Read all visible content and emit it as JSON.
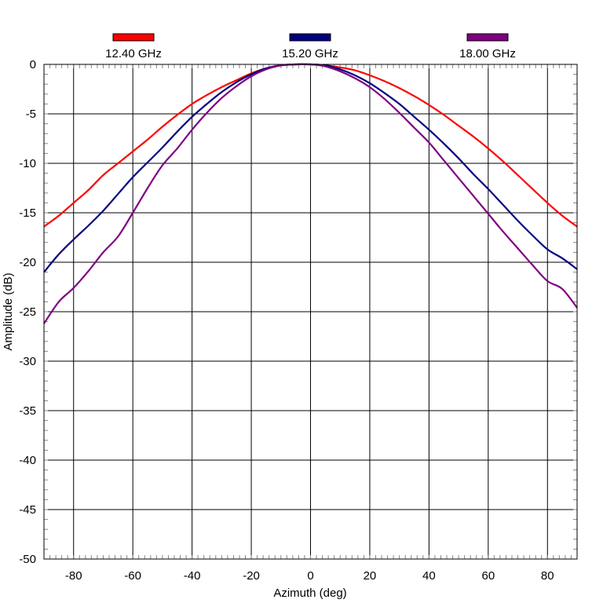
{
  "chart_data": {
    "type": "line",
    "title": "",
    "xlabel": "Azimuth (deg)",
    "ylabel": "Amplitude (dB)",
    "xlim": [
      -90,
      90
    ],
    "ylim": [
      -50,
      0
    ],
    "xticks": [
      -80,
      -60,
      -40,
      -20,
      0,
      20,
      40,
      60,
      80
    ],
    "yticks": [
      0,
      -5,
      -10,
      -15,
      -20,
      -25,
      -30,
      -35,
      -40,
      -45,
      -50
    ],
    "x_minor_step": 2,
    "y_minor_step": 1,
    "grid": true,
    "legend_position": "top",
    "series": [
      {
        "name": "12.40 GHz",
        "color": "#ff0000",
        "x": [
          -90,
          -85,
          -80,
          -75,
          -70,
          -65,
          -60,
          -55,
          -50,
          -45,
          -40,
          -35,
          -30,
          -25,
          -20,
          -15,
          -10,
          -5,
          0,
          5,
          10,
          15,
          20,
          25,
          30,
          35,
          40,
          45,
          50,
          55,
          60,
          65,
          70,
          75,
          80,
          85,
          90
        ],
        "y": [
          -16.4,
          -15.3,
          -14.0,
          -12.7,
          -11.2,
          -10.0,
          -8.8,
          -7.6,
          -6.3,
          -5.1,
          -4.0,
          -3.1,
          -2.3,
          -1.6,
          -0.9,
          -0.4,
          -0.1,
          0.0,
          0.0,
          -0.1,
          -0.3,
          -0.6,
          -1.1,
          -1.7,
          -2.4,
          -3.2,
          -4.1,
          -5.1,
          -6.2,
          -7.3,
          -8.5,
          -9.8,
          -11.2,
          -12.6,
          -14.0,
          -15.3,
          -16.4
        ]
      },
      {
        "name": "15.20 GHz",
        "color": "#000080",
        "x": [
          -90,
          -85,
          -80,
          -75,
          -70,
          -65,
          -60,
          -55,
          -50,
          -45,
          -40,
          -35,
          -30,
          -25,
          -20,
          -15,
          -10,
          -5,
          0,
          5,
          10,
          15,
          20,
          25,
          30,
          35,
          40,
          45,
          50,
          55,
          60,
          65,
          70,
          75,
          80,
          85,
          90
        ],
        "y": [
          -21.0,
          -19.2,
          -17.7,
          -16.3,
          -14.8,
          -13.1,
          -11.4,
          -9.9,
          -8.4,
          -6.8,
          -5.3,
          -4.0,
          -2.8,
          -1.8,
          -1.0,
          -0.4,
          -0.1,
          0.0,
          0.0,
          -0.1,
          -0.5,
          -1.1,
          -1.9,
          -2.9,
          -4.0,
          -5.3,
          -6.6,
          -8.0,
          -9.5,
          -11.1,
          -12.6,
          -14.2,
          -15.8,
          -17.3,
          -18.7,
          -19.6,
          -20.7
        ]
      },
      {
        "name": "18.00 GHz",
        "color": "#800080",
        "x": [
          -90,
          -85,
          -80,
          -75,
          -70,
          -65,
          -60,
          -55,
          -50,
          -45,
          -40,
          -35,
          -30,
          -25,
          -20,
          -15,
          -10,
          -5,
          0,
          5,
          10,
          15,
          20,
          25,
          30,
          35,
          40,
          45,
          50,
          55,
          60,
          65,
          70,
          75,
          80,
          85,
          90
        ],
        "y": [
          -26.2,
          -24.0,
          -22.6,
          -20.9,
          -19.0,
          -17.4,
          -15.0,
          -12.5,
          -10.2,
          -8.5,
          -6.6,
          -4.9,
          -3.4,
          -2.2,
          -1.2,
          -0.5,
          -0.1,
          0.0,
          0.0,
          -0.2,
          -0.7,
          -1.4,
          -2.3,
          -3.5,
          -4.9,
          -6.4,
          -7.9,
          -9.7,
          -11.5,
          -13.3,
          -15.1,
          -16.9,
          -18.6,
          -20.3,
          -21.9,
          -22.7,
          -24.6
        ]
      }
    ]
  }
}
